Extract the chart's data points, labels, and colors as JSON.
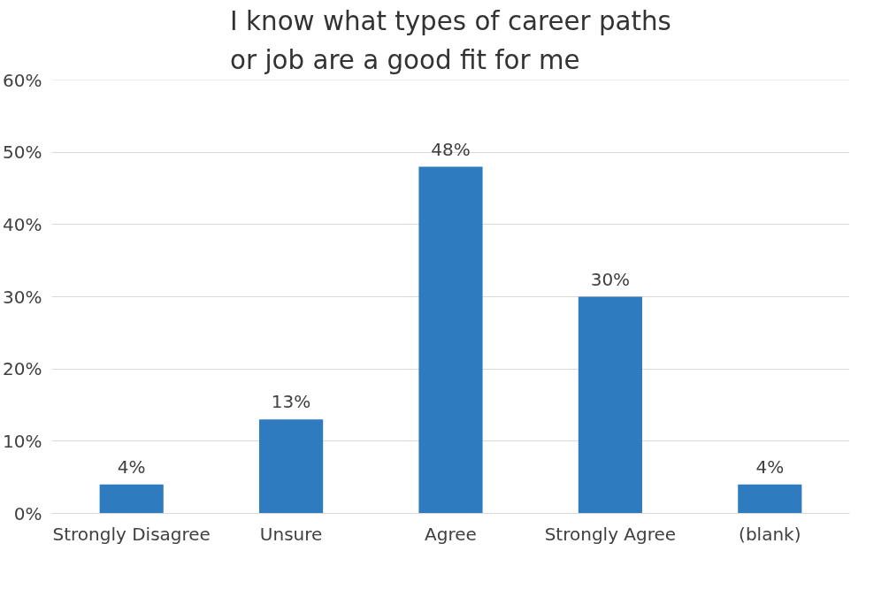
{
  "chart_data": {
    "type": "bar",
    "title": "I know what types of career paths or job are a good fit for me",
    "categories": [
      "Strongly Disagree",
      "Unsure",
      "Agree",
      "Strongly Agree",
      "(blank)"
    ],
    "values": [
      4,
      13,
      48,
      30,
      4
    ],
    "value_labels": [
      "4%",
      "13%",
      "48%",
      "30%",
      "4%"
    ],
    "color": "#2e7bbf",
    "ylim": [
      0,
      60
    ],
    "yticks": [
      {
        "value": 0,
        "label": "0%"
      },
      {
        "value": 10,
        "label": "10%"
      },
      {
        "value": 20,
        "label": "20%"
      },
      {
        "value": 30,
        "label": "30%"
      },
      {
        "value": 40,
        "label": "40%"
      },
      {
        "value": 50,
        "label": "50%"
      },
      {
        "value": 60,
        "label": "60%"
      }
    ],
    "grid": "y"
  }
}
